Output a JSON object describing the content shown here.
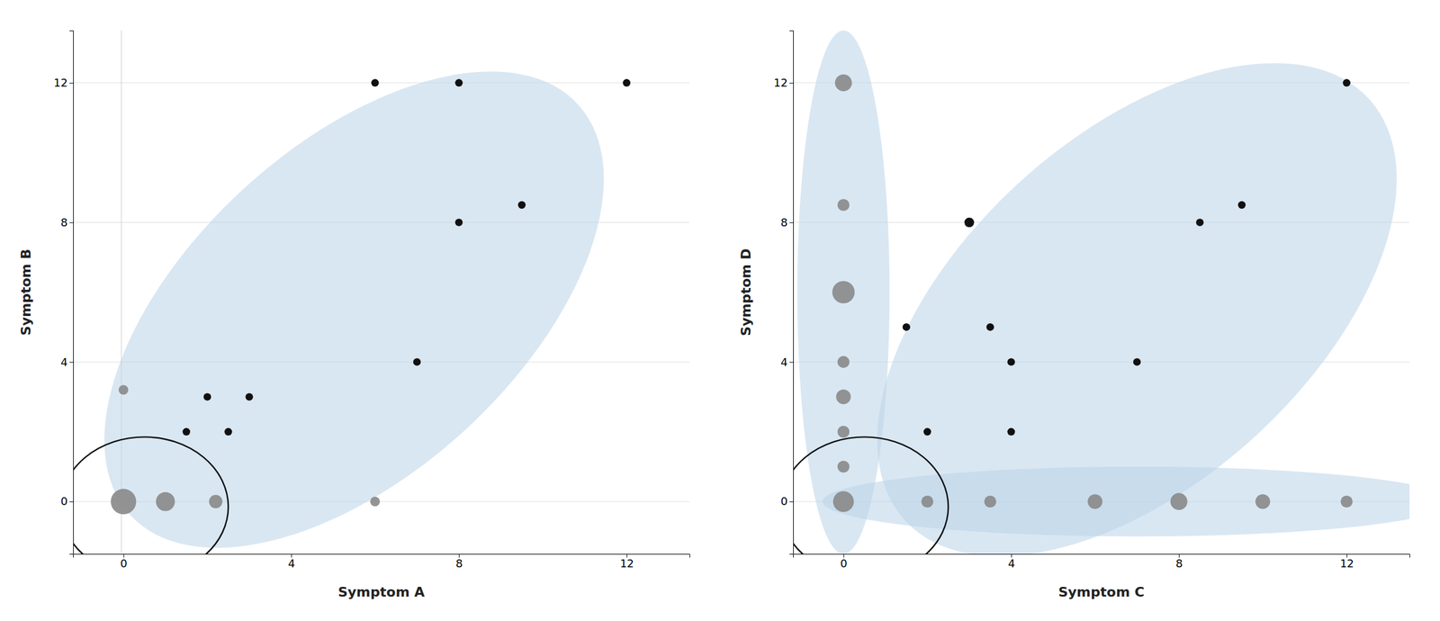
{
  "chart_data": [
    {
      "type": "scatter",
      "xlabel": "Symptom A",
      "ylabel": "Symptom B",
      "xlim": [
        -1.2,
        13.5
      ],
      "ylim": [
        -1.5,
        13.5
      ],
      "xticks": [
        0,
        4,
        8,
        12
      ],
      "yticks": [
        0,
        4,
        8,
        12
      ],
      "grid": "y",
      "ellipse_color": "#bad4e8",
      "ellipses": [
        {
          "cx": 5.5,
          "cy": 5.5,
          "width": 8.5,
          "height": 16.0,
          "angle": -38
        }
      ],
      "series": [
        {
          "color": "#888888",
          "x": [
            0,
            0,
            1,
            2.2,
            6
          ],
          "values": [
            3.2,
            0,
            0,
            0,
            0
          ],
          "sizes": [
            130,
            900,
            500,
            250,
            130
          ]
        },
        {
          "color": "#111111",
          "x": [
            6,
            8,
            12,
            9.5,
            8,
            7,
            1.5,
            2,
            3,
            2.5
          ],
          "values": [
            12,
            12,
            12,
            8.5,
            8,
            4,
            2,
            3,
            3,
            2
          ],
          "sizes": [
            80,
            80,
            80,
            80,
            80,
            80,
            80,
            80,
            80,
            80
          ]
        }
      ],
      "circle": {
        "cx": 0.5,
        "cy": -0.15,
        "radius": 2.0,
        "color": "#111111"
      },
      "vline": -0.05
    },
    {
      "type": "scatter",
      "xlabel": "Symptom C",
      "ylabel": "Symptom D",
      "xlim": [
        -1.2,
        13.5
      ],
      "ylim": [
        -1.5,
        13.5
      ],
      "xticks": [
        0,
        4,
        8,
        12
      ],
      "yticks": [
        0,
        4,
        8,
        12
      ],
      "grid": "y",
      "ellipse_color": "#bad4e8",
      "ellipses": [
        {
          "cx": 0,
          "cy": 6.0,
          "width": 2.2,
          "height": 15.0,
          "angle": 0
        },
        {
          "cx": 7.0,
          "cy": 0,
          "width": 15.0,
          "height": 2.0,
          "angle": 0
        },
        {
          "cx": 7.0,
          "cy": 5.5,
          "width": 9.0,
          "height": 16.5,
          "angle": -38
        }
      ],
      "series": [
        {
          "color": "#888888",
          "x": [
            0,
            0,
            0,
            0,
            0,
            0,
            0,
            0,
            2,
            3.5,
            6,
            8,
            10,
            12
          ],
          "values": [
            12,
            8.5,
            6,
            4,
            3,
            2,
            1,
            0,
            0,
            0,
            0,
            0,
            0,
            0
          ],
          "sizes": [
            400,
            200,
            700,
            200,
            300,
            200,
            200,
            600,
            200,
            200,
            300,
            400,
            300,
            200
          ]
        },
        {
          "color": "#111111",
          "x": [
            12,
            9.5,
            8.5,
            3,
            4,
            7,
            2,
            4,
            1.5,
            3.5
          ],
          "values": [
            12,
            8.5,
            8,
            8,
            4,
            4,
            2,
            2,
            5,
            5
          ],
          "sizes": [
            80,
            80,
            80,
            130,
            80,
            80,
            80,
            80,
            80,
            80
          ]
        }
      ],
      "circle": {
        "cx": 0.5,
        "cy": -0.15,
        "radius": 2.0,
        "color": "#111111"
      }
    }
  ]
}
